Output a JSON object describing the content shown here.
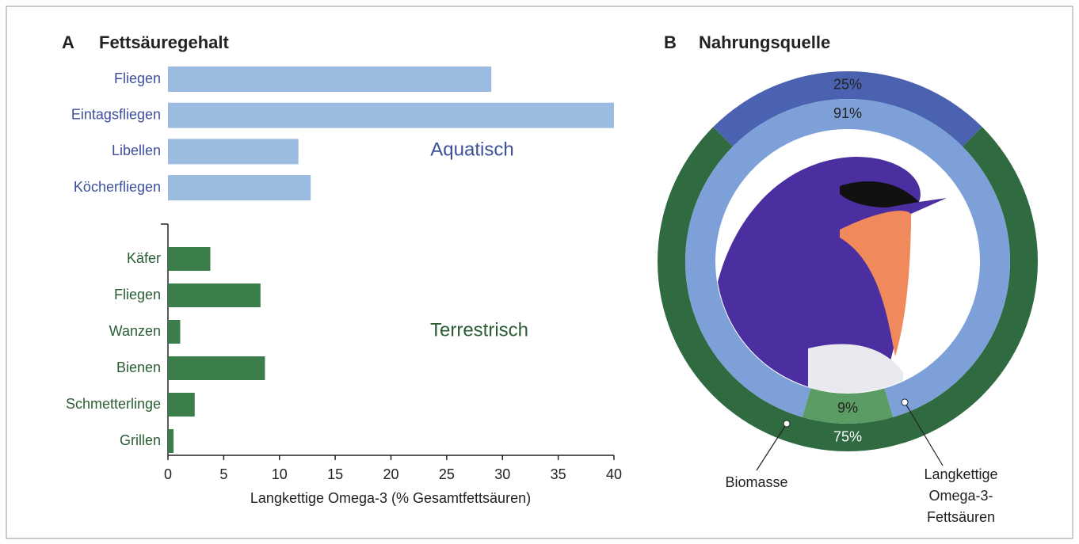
{
  "chart_data": [
    {
      "type": "hbar",
      "panel": "A",
      "title": "Fettsäuregehalt",
      "xlabel": "Langkettige Omega-3 (% Gesamtfettsäuren)",
      "xlim": [
        0,
        40
      ],
      "xticks": [
        0,
        5,
        10,
        15,
        20,
        25,
        30,
        35,
        40
      ],
      "series": [
        {
          "name": "Aquatisch",
          "color": "#9bbbe0",
          "label_color": "#3d4f9a",
          "categories": [
            "Fliegen",
            "Eintagsfliegen",
            "Libellen",
            "Köcherfliegen"
          ],
          "values": [
            29,
            40,
            11.7,
            12.8
          ]
        },
        {
          "name": "Terrestrisch",
          "color": "#3c7d4c",
          "label_color": "#2a5d33",
          "categories": [
            "Käfer",
            "Fliegen",
            "Wanzen",
            "Bienen",
            "Schmetterlinge",
            "Grillen"
          ],
          "values": [
            3.8,
            8.3,
            1.1,
            8.7,
            2.4,
            0.5
          ]
        }
      ]
    },
    {
      "type": "donut",
      "panel": "B",
      "title": "Nahrungsquelle",
      "rings": [
        {
          "name": [
            "Biomasse"
          ],
          "values": [
            25,
            75
          ],
          "value_labels": [
            "25%",
            "75%"
          ],
          "colors": [
            "#4a62b0",
            "#2f6a40"
          ]
        },
        {
          "name": [
            "Langkettige",
            "Omega-3-",
            "Fettsäuren"
          ],
          "values": [
            91,
            9
          ],
          "value_labels": [
            "91%",
            "9%"
          ],
          "colors": [
            "#7ea0d8",
            "#5b9c64"
          ]
        }
      ]
    }
  ]
}
